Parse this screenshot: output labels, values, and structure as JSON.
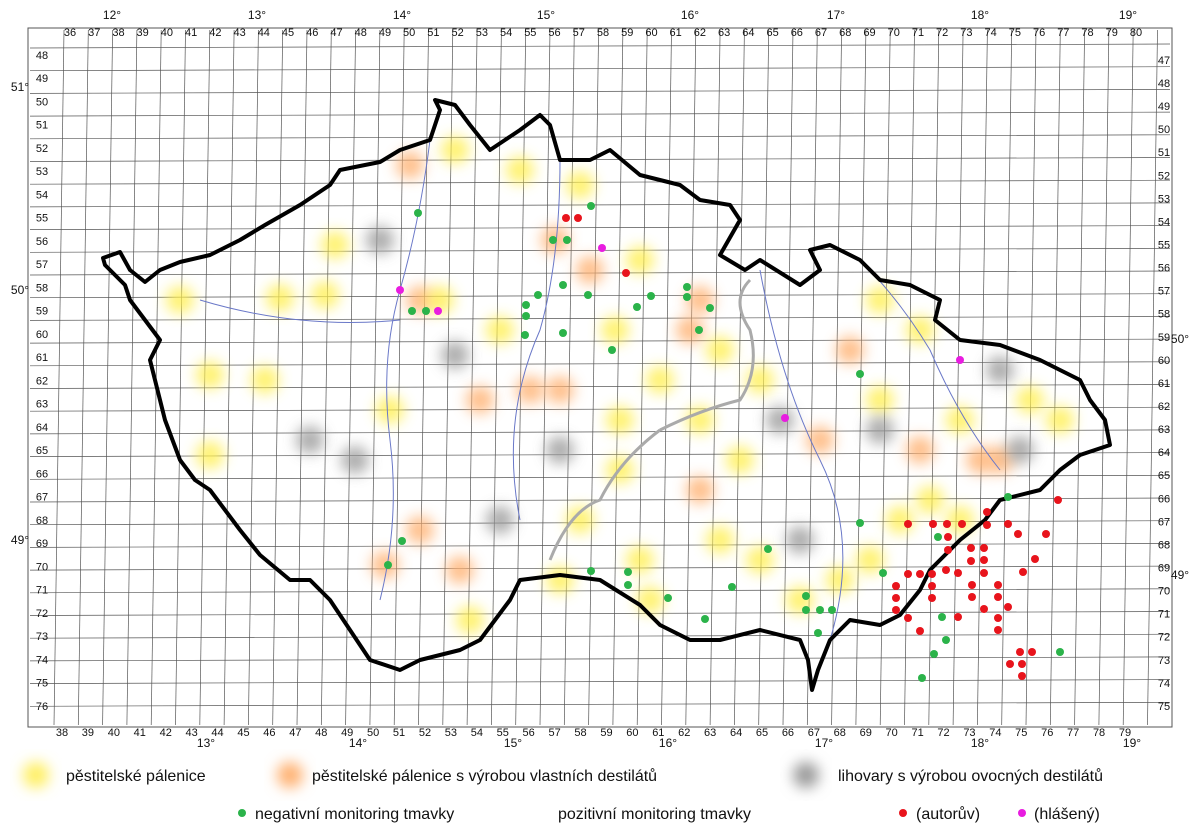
{
  "map": {
    "top_labels": [
      "36",
      "37",
      "38",
      "39",
      "40",
      "41",
      "42",
      "43",
      "44",
      "45",
      "46",
      "47",
      "48",
      "49",
      "50",
      "51",
      "52",
      "53",
      "54",
      "55",
      "56",
      "57",
      "58",
      "59",
      "60",
      "61",
      "62",
      "63",
      "64",
      "65",
      "66",
      "67",
      "68",
      "69",
      "70",
      "71",
      "72",
      "73",
      "74",
      "75",
      "76",
      "77",
      "78",
      "79",
      "80"
    ],
    "bottom_labels": [
      "38",
      "39",
      "40",
      "41",
      "42",
      "43",
      "44",
      "45",
      "46",
      "47",
      "48",
      "49",
      "50",
      "51",
      "52",
      "53",
      "54",
      "55",
      "56",
      "57",
      "58",
      "59",
      "60",
      "61",
      "62",
      "63",
      "64",
      "65",
      "66",
      "67",
      "68",
      "69",
      "70",
      "71",
      "72",
      "73",
      "74",
      "75",
      "76",
      "77",
      "78",
      "79"
    ],
    "left_labels": [
      "48",
      "49",
      "50",
      "51",
      "52",
      "53",
      "54",
      "55",
      "56",
      "57",
      "58",
      "59",
      "60",
      "61",
      "62",
      "63",
      "64",
      "65",
      "66",
      "67",
      "68",
      "69",
      "70",
      "71",
      "72",
      "73",
      "74",
      "75",
      "76"
    ],
    "right_labels": [
      "47",
      "48",
      "49",
      "50",
      "51",
      "52",
      "53",
      "54",
      "55",
      "56",
      "57",
      "58",
      "59",
      "60",
      "61",
      "62",
      "63",
      "64",
      "65",
      "66",
      "67",
      "68",
      "69",
      "70",
      "71",
      "72",
      "73",
      "74",
      "75"
    ],
    "top_degrees": [
      "12°",
      "13°",
      "14°",
      "15°",
      "16°",
      "17°",
      "18°",
      "19°"
    ],
    "bottom_degrees": [
      "13°",
      "14°",
      "15°",
      "16°",
      "17°",
      "18°",
      "19°"
    ],
    "left_degrees": [
      "51°",
      "50°",
      "49°"
    ],
    "right_degrees": [
      "50°",
      "49°"
    ]
  },
  "legend": {
    "yellow": "pěstitelské pálenice",
    "orange": "pěstitelské pálenice s výrobou vlastních destilátů",
    "gray": "lihovary s výrobou ovocných destilátů",
    "green": "negativní monitoring tmavky",
    "positive": "pozitivní monitoring tmavky",
    "red": "(autorův)",
    "magenta": "(hlášený)"
  }
}
